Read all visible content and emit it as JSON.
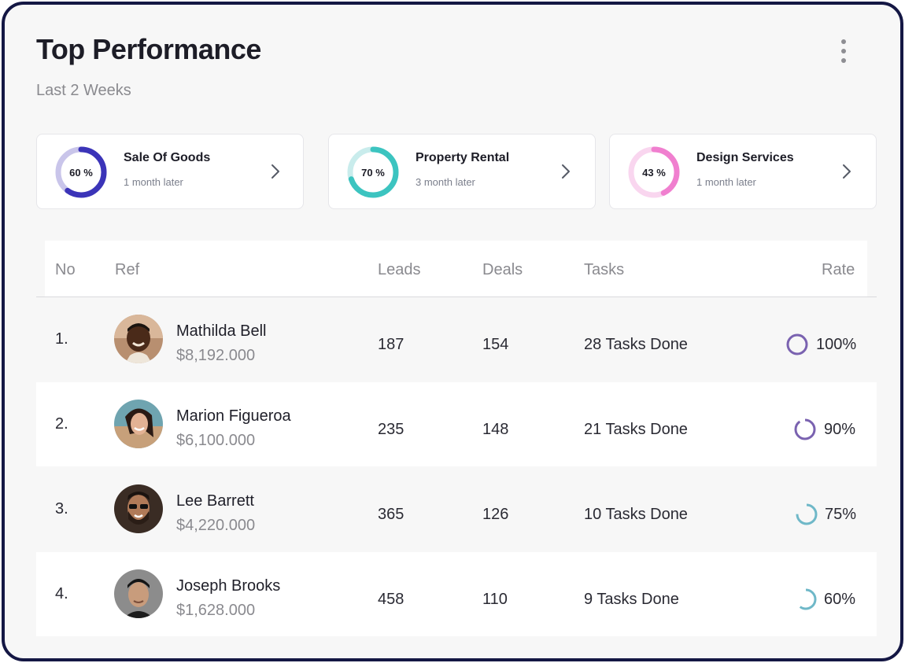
{
  "header": {
    "title": "Top Performance",
    "subtitle": "Last 2 Weeks",
    "menu_icon": "more-vertical-icon"
  },
  "cards": [
    {
      "name": "Sale Of Goods",
      "sub": "1 month later",
      "percent_label": "60 %",
      "percent": 60,
      "color": "#3b34b8",
      "track": "#c9c5ea"
    },
    {
      "name": "Property Rental",
      "sub": "3 month later",
      "percent_label": "70 %",
      "percent": 70,
      "color": "#3cc4c0",
      "track": "#c9ecec"
    },
    {
      "name": "Design Services",
      "sub": "1 month later",
      "percent_label": "43 %",
      "percent": 43,
      "color": "#f07fcf",
      "track": "#f9d6ef"
    }
  ],
  "table": {
    "headers": {
      "no": "No",
      "ref": "Ref",
      "leads": "Leads",
      "deals": "Deals",
      "tasks": "Tasks",
      "rate": "Rate"
    },
    "rows": [
      {
        "no": "1.",
        "name": "Mathilda Bell",
        "amount": "$8,192.000",
        "leads": "187",
        "deals": "154",
        "tasks": "28 Tasks Done",
        "rate": "100%",
        "rate_value": 100,
        "rate_color": "#7a62b0"
      },
      {
        "no": "2.",
        "name": "Marion Figueroa",
        "amount": "$6,100.000",
        "leads": "235",
        "deals": "148",
        "tasks": "21 Tasks Done",
        "rate": "90%",
        "rate_value": 90,
        "rate_color": "#7a62b0"
      },
      {
        "no": "3.",
        "name": "Lee Barrett",
        "amount": "$4,220.000",
        "leads": "365",
        "deals": "126",
        "tasks": "10 Tasks Done",
        "rate": "75%",
        "rate_value": 75,
        "rate_color": "#6fb8c8"
      },
      {
        "no": "4.",
        "name": "Joseph Brooks",
        "amount": "$1,628.000",
        "leads": "458",
        "deals": "110",
        "tasks": "9 Tasks Done",
        "rate": "60%",
        "rate_value": 60,
        "rate_color": "#6fb8c8"
      }
    ]
  }
}
